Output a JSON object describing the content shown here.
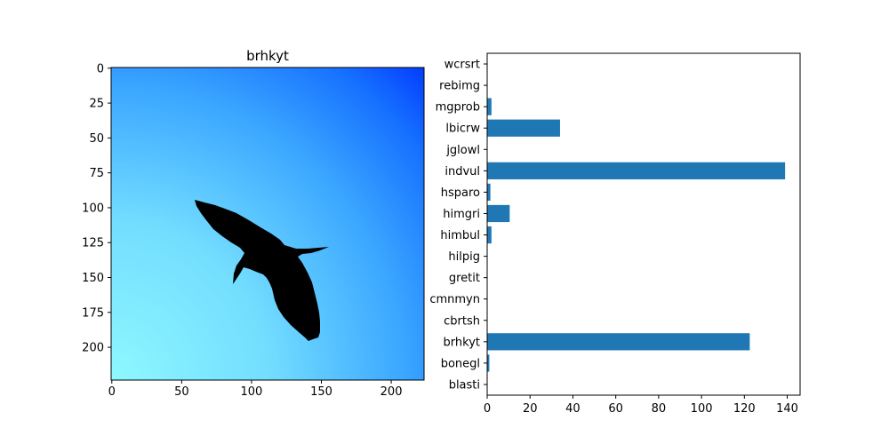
{
  "chart_data": [
    {
      "type": "image",
      "title": "brhkyt",
      "image_size": [
        224,
        224
      ],
      "xticks": [
        0,
        50,
        100,
        150,
        200
      ],
      "yticks": [
        0,
        25,
        50,
        75,
        100,
        125,
        150,
        175,
        200
      ],
      "xlim": [
        -0.5,
        223.5
      ],
      "ylim": [
        223.5,
        -0.5
      ],
      "content": "blue-sky-with-bird-silhouette"
    },
    {
      "type": "bar",
      "orientation": "horizontal",
      "categories": [
        "blasti",
        "bonegl",
        "brhkyt",
        "cbrtsh",
        "cmnmyn",
        "gretit",
        "hilpig",
        "himbul",
        "himgri",
        "hsparo",
        "indvul",
        "jglowl",
        "lbicrw",
        "mgprob",
        "rebimg",
        "wcrsrt"
      ],
      "values": [
        0,
        1,
        122.5,
        0,
        0,
        0,
        0,
        2,
        10.5,
        1.5,
        139,
        0,
        34,
        2,
        0,
        0
      ],
      "xticks": [
        0,
        20,
        40,
        60,
        80,
        100,
        120,
        140
      ],
      "xlim": [
        0,
        146
      ],
      "bar_color": "#1f77b4"
    }
  ]
}
